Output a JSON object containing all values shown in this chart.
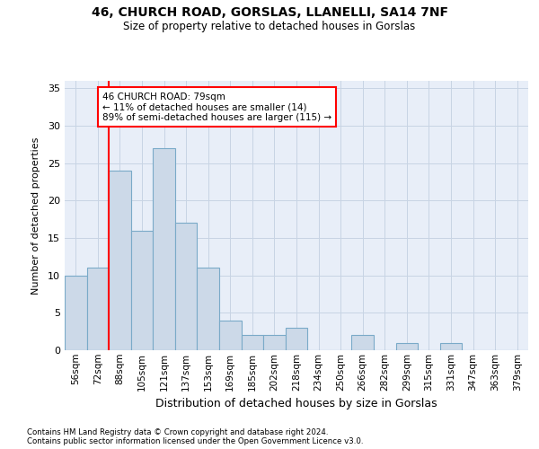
{
  "title1": "46, CHURCH ROAD, GORSLAS, LLANELLI, SA14 7NF",
  "title2": "Size of property relative to detached houses in Gorslas",
  "xlabel": "Distribution of detached houses by size in Gorslas",
  "ylabel": "Number of detached properties",
  "categories": [
    "56sqm",
    "72sqm",
    "88sqm",
    "105sqm",
    "121sqm",
    "137sqm",
    "153sqm",
    "169sqm",
    "185sqm",
    "202sqm",
    "218sqm",
    "234sqm",
    "250sqm",
    "266sqm",
    "282sqm",
    "299sqm",
    "315sqm",
    "331sqm",
    "347sqm",
    "363sqm",
    "379sqm"
  ],
  "values": [
    10,
    11,
    24,
    16,
    27,
    17,
    11,
    4,
    2,
    2,
    3,
    0,
    0,
    2,
    0,
    1,
    0,
    1,
    0,
    0,
    0
  ],
  "bar_color": "#ccd9e8",
  "bar_edge_color": "#7aaac8",
  "annotation_text": "46 CHURCH ROAD: 79sqm\n← 11% of detached houses are smaller (14)\n89% of semi-detached houses are larger (115) →",
  "annotation_box_color": "white",
  "annotation_border_color": "red",
  "property_line_color": "red",
  "property_line_bar_idx": 1,
  "ylim": [
    0,
    36
  ],
  "yticks": [
    0,
    5,
    10,
    15,
    20,
    25,
    30,
    35
  ],
  "grid_color": "#c8d4e4",
  "background_color": "#e8eef8",
  "footnote1": "Contains HM Land Registry data © Crown copyright and database right 2024.",
  "footnote2": "Contains public sector information licensed under the Open Government Licence v3.0."
}
